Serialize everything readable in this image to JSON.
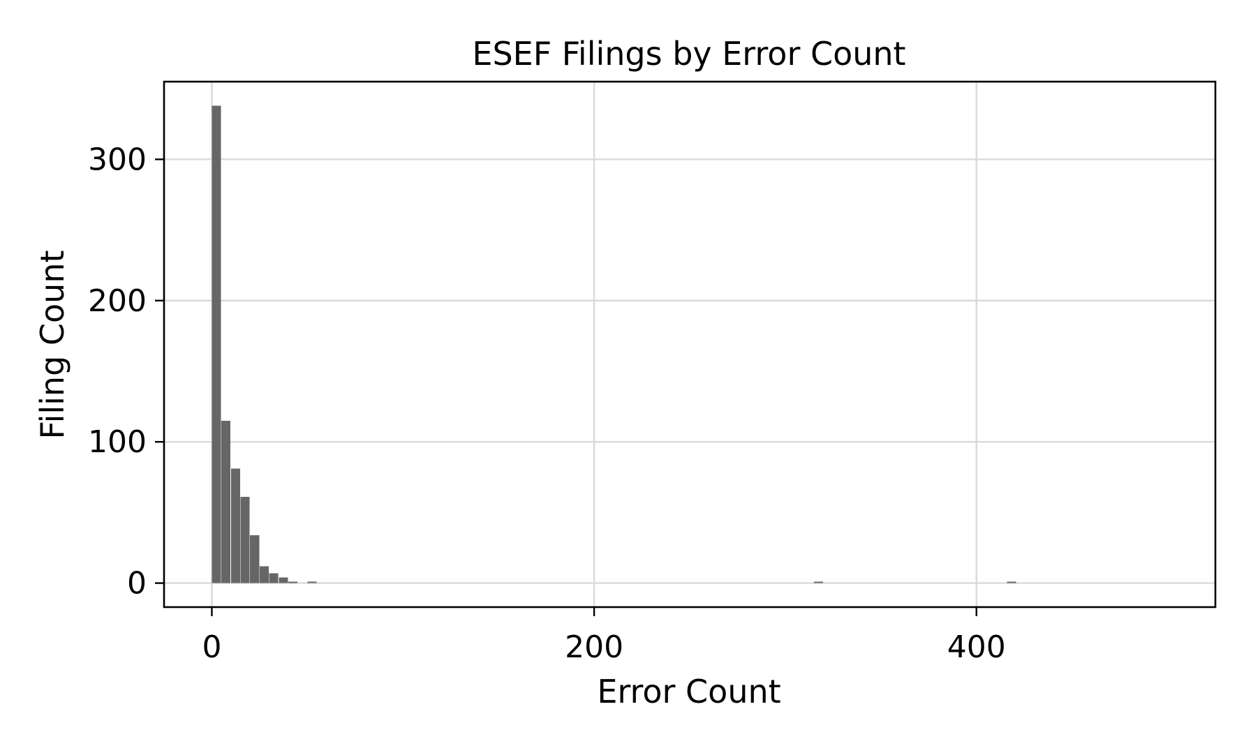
{
  "chart_data": {
    "type": "bar",
    "title": "ESEF Filings by Error Count",
    "xlabel": "Error Count",
    "ylabel": "Filing Count",
    "xlim": [
      -25,
      525
    ],
    "ylim": [
      -17,
      355
    ],
    "xticks": [
      0,
      200,
      400
    ],
    "yticks": [
      0,
      100,
      200,
      300
    ],
    "grid": true,
    "bar_color": "#666666",
    "bin_width": 5,
    "bins": [
      {
        "x0": 0,
        "x1": 5,
        "count": 338
      },
      {
        "x0": 5,
        "x1": 10,
        "count": 115
      },
      {
        "x0": 10,
        "x1": 15,
        "count": 81
      },
      {
        "x0": 15,
        "x1": 20,
        "count": 61
      },
      {
        "x0": 20,
        "x1": 25,
        "count": 34
      },
      {
        "x0": 25,
        "x1": 30,
        "count": 12
      },
      {
        "x0": 30,
        "x1": 35,
        "count": 7
      },
      {
        "x0": 35,
        "x1": 40,
        "count": 4
      },
      {
        "x0": 40,
        "x1": 45,
        "count": 1
      },
      {
        "x0": 50,
        "x1": 55,
        "count": 1
      },
      {
        "x0": 315,
        "x1": 320,
        "count": 1
      },
      {
        "x0": 416,
        "x1": 421,
        "count": 1
      }
    ]
  }
}
